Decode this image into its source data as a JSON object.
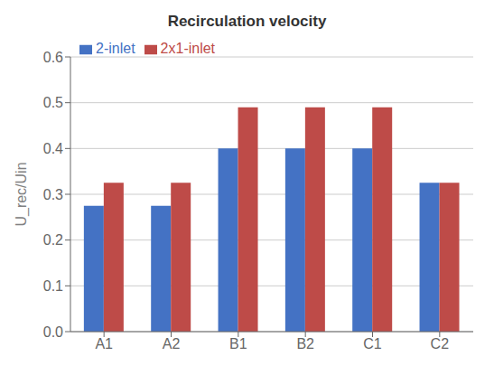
{
  "chart_data": {
    "type": "bar",
    "title": "Recirculation velocity",
    "ylabel": "U_rec/Uin",
    "categories": [
      "A1",
      "A2",
      "B1",
      "B2",
      "C1",
      "C2"
    ],
    "series": [
      {
        "name": "2-inlet",
        "color": "#4472C4",
        "values": [
          0.275,
          0.275,
          0.4,
          0.4,
          0.4,
          0.325
        ]
      },
      {
        "name": "2x1-inlet",
        "color": "#BE4B48",
        "values": [
          0.325,
          0.325,
          0.49,
          0.49,
          0.49,
          0.325
        ]
      }
    ],
    "ylim": [
      0.0,
      0.6
    ],
    "yticks": [
      {
        "value": 0,
        "label": "0.0"
      },
      0.1,
      0.2,
      0.3,
      0.4,
      0.5,
      0.6
    ],
    "grid": true,
    "legend": "upper left"
  }
}
